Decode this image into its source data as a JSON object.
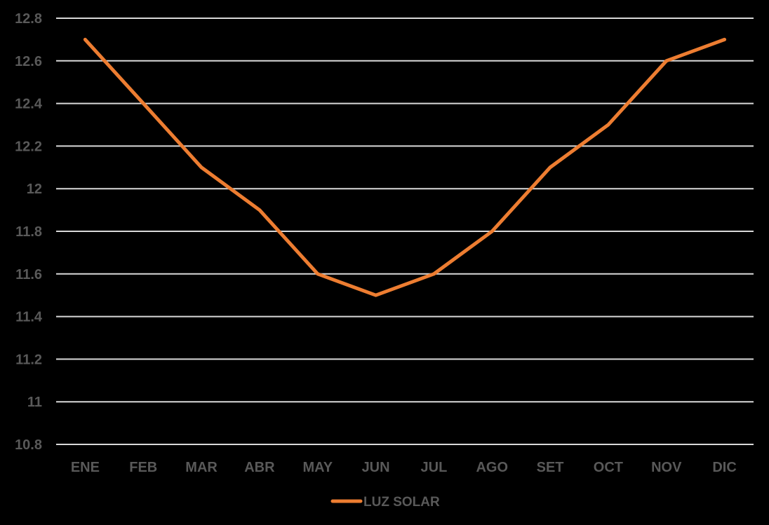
{
  "chart_data": {
    "type": "line",
    "categories": [
      "ENE",
      "FEB",
      "MAR",
      "ABR",
      "MAY",
      "JUN",
      "JUL",
      "AGO",
      "SET",
      "OCT",
      "NOV",
      "DIC"
    ],
    "series": [
      {
        "name": "LUZ SOLAR",
        "values": [
          12.7,
          12.4,
          12.1,
          11.9,
          11.6,
          11.5,
          11.6,
          11.8,
          12.1,
          12.3,
          12.6,
          12.7
        ]
      }
    ],
    "y_ticks": [
      "10.8",
      "11",
      "11.2",
      "11.4",
      "11.6",
      "11.8",
      "12",
      "12.2",
      "12.4",
      "12.6",
      "12.8"
    ],
    "ylim": [
      10.8,
      12.8
    ],
    "grid": true,
    "legend_position": "bottom",
    "colors": {
      "background": "#000000",
      "gridline": "#d9d9d9",
      "series": "#ed7d31",
      "text": "#595959"
    }
  }
}
